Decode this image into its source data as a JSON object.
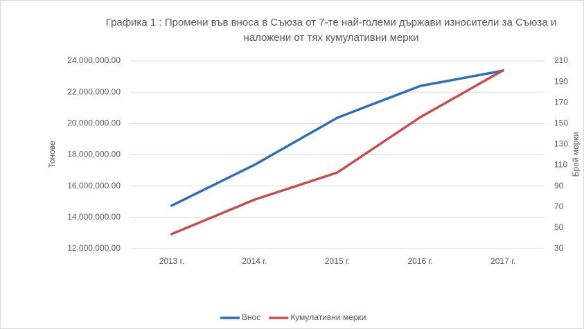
{
  "chart_data": {
    "type": "line",
    "title": "Графика 1 : Промени във вноса в Съюза от 7-те най-големи държави износители за Съюза и наложени от тях кумулативни мерки",
    "ylabel": "Тонове",
    "y2label": "Брой мерки",
    "categories": [
      "2013 г.",
      "2014 г.",
      "2015 г.",
      "2016 г.",
      "2017 г."
    ],
    "series": [
      {
        "name": "Внос",
        "color": "#2e6fb4",
        "values": [
          14750000,
          17360000,
          20370000,
          22400000,
          23380000
        ]
      },
      {
        "name": "Кумулативни мерки",
        "color": "#c0504d",
        "axis": "y2",
        "values": [
          44,
          77,
          103,
          156,
          201
        ]
      }
    ],
    "ylim": [
      12000000,
      24000000
    ],
    "yticks": [
      {
        "value": 12000000,
        "label": "12,000,000.00"
      },
      {
        "value": 14000000,
        "label": "14,000,000.00"
      },
      {
        "value": 16000000,
        "label": "16,000,000.00"
      },
      {
        "value": 18000000,
        "label": "18,000,000.00"
      },
      {
        "value": 20000000,
        "label": "20,000,000.00"
      },
      {
        "value": 22000000,
        "label": "22,000,000.00"
      },
      {
        "value": 24000000,
        "label": "24,000,000.00"
      }
    ],
    "y2lim": [
      30,
      210
    ],
    "y2ticks": [
      30,
      50,
      70,
      90,
      110,
      130,
      150,
      170,
      190,
      210
    ],
    "grid": true,
    "legend": "bottom"
  }
}
